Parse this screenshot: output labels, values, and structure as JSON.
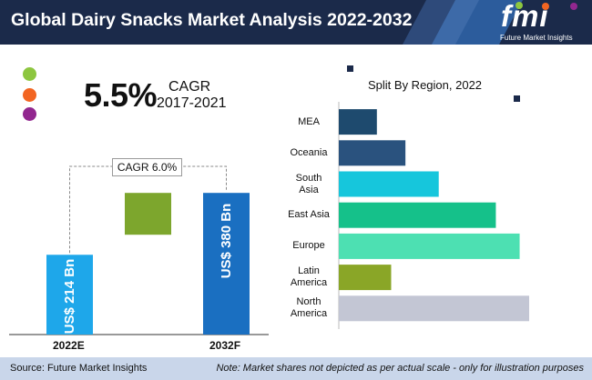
{
  "header": {
    "title": "Global Dairy Snacks Market Analysis 2022-2032"
  },
  "logo": {
    "mark": "fmi",
    "tagline": "Future Market Insights"
  },
  "cagr": {
    "value": "5.5%",
    "label": "CAGR",
    "period": "2017-2021"
  },
  "colors": {
    "header_bg": "#1b2a4a",
    "legend_dots": [
      "#8dc63f",
      "#f26522",
      "#92278f"
    ],
    "footer_bg": "#c9d6ea"
  },
  "chart_data": [
    {
      "type": "bar",
      "title": "",
      "categories": [
        "2022E",
        "2032F"
      ],
      "values": [
        214,
        380
      ],
      "value_labels": [
        "US$ 214 Bn",
        "US$ 380 Bn"
      ],
      "unit": "US$ Bn",
      "ylim": [
        0,
        400
      ],
      "annotation": "CAGR 6.0%",
      "increment_bar": {
        "from": 214,
        "to": 380
      },
      "colors": [
        "#1ea7ea",
        "#1a6fc1",
        "#7da62d"
      ]
    },
    {
      "type": "bar",
      "orientation": "horizontal",
      "title": "Split By Region, 2022",
      "categories": [
        "MEA",
        "Oceania",
        "South Asia",
        "East Asia",
        "Europe",
        "Latin America",
        "North America"
      ],
      "category_lines": [
        [
          "MEA"
        ],
        [
          "Oceania"
        ],
        [
          "South",
          "Asia"
        ],
        [
          "East Asia"
        ],
        [
          "Europe"
        ],
        [
          "Latin",
          "America"
        ],
        [
          "North",
          "America"
        ]
      ],
      "values": [
        4,
        7,
        10.5,
        16.5,
        19,
        5.5,
        20
      ],
      "colors": [
        "#1e4a6e",
        "#2a527e",
        "#16c6dc",
        "#15c18a",
        "#4de0b2",
        "#8aa627",
        "#c3c6d4"
      ],
      "xlim": [
        0,
        20
      ],
      "note": "Market shares not depicted as per actual scale"
    }
  ],
  "footer": {
    "source": "Source: Future Market Insights",
    "note": "Note: Market shares not depicted as per actual scale - only for illustration purposes"
  }
}
